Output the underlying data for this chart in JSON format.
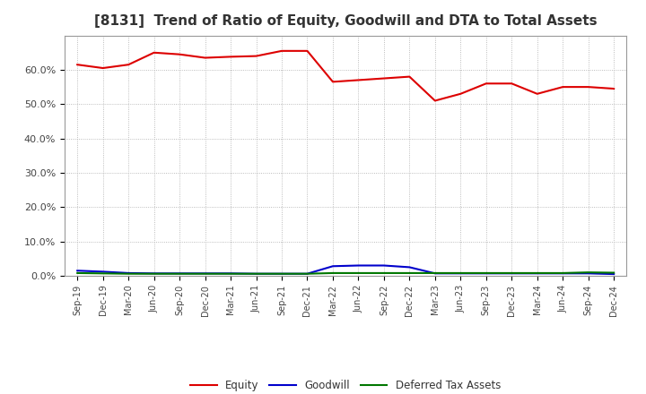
{
  "title": "[8131]  Trend of Ratio of Equity, Goodwill and DTA to Total Assets",
  "x_labels": [
    "Sep-19",
    "Dec-19",
    "Mar-20",
    "Jun-20",
    "Sep-20",
    "Dec-20",
    "Mar-21",
    "Jun-21",
    "Sep-21",
    "Dec-21",
    "Mar-22",
    "Jun-22",
    "Sep-22",
    "Dec-22",
    "Mar-23",
    "Jun-23",
    "Sep-23",
    "Dec-23",
    "Mar-24",
    "Jun-24",
    "Sep-24",
    "Dec-24"
  ],
  "equity": [
    61.5,
    60.5,
    61.5,
    65.0,
    64.5,
    63.5,
    63.8,
    64.0,
    65.5,
    65.5,
    56.5,
    57.0,
    57.5,
    58.0,
    51.0,
    53.0,
    56.0,
    56.0,
    53.0,
    55.0,
    55.0,
    54.5
  ],
  "goodwill": [
    1.5,
    1.2,
    0.8,
    0.7,
    0.7,
    0.7,
    0.7,
    0.6,
    0.6,
    0.6,
    2.8,
    3.0,
    3.0,
    2.5,
    0.7,
    0.7,
    0.7,
    0.7,
    0.7,
    0.7,
    0.7,
    0.5
  ],
  "dta": [
    0.8,
    0.7,
    0.6,
    0.6,
    0.6,
    0.6,
    0.6,
    0.6,
    0.6,
    0.6,
    0.8,
    0.8,
    0.8,
    0.8,
    0.8,
    0.8,
    0.8,
    0.8,
    0.8,
    0.8,
    1.0,
    0.9
  ],
  "equity_color": "#dd0000",
  "goodwill_color": "#0000cc",
  "dta_color": "#007700",
  "ylim": [
    0,
    70
  ],
  "yticks": [
    0,
    10,
    20,
    30,
    40,
    50,
    60
  ],
  "ytick_labels": [
    "0.0%",
    "10.0%",
    "20.0%",
    "30.0%",
    "40.0%",
    "50.0%",
    "60.0%"
  ],
  "background_color": "#ffffff",
  "plot_bg_color": "#ffffff",
  "grid_color": "#aaaaaa",
  "legend_labels": [
    "Equity",
    "Goodwill",
    "Deferred Tax Assets"
  ],
  "title_fontsize": 11,
  "linewidth": 1.5,
  "tick_fontsize": 7,
  "ytick_fontsize": 8
}
